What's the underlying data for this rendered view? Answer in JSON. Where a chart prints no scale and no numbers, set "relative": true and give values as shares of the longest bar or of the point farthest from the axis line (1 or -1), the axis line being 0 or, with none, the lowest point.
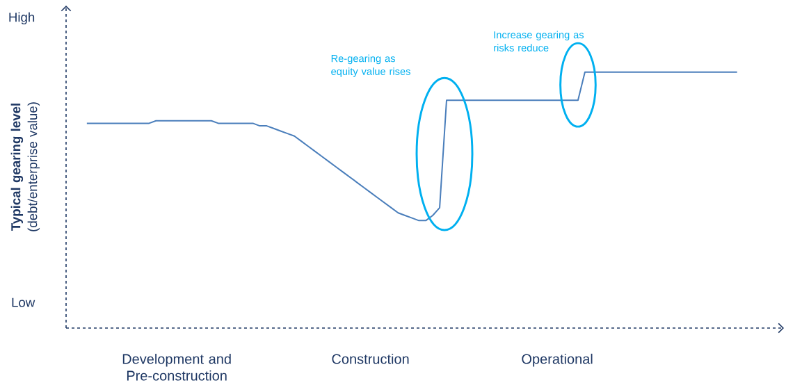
{
  "chart_data": {
    "type": "line",
    "relative": true,
    "ylabel": "**Typical gearing level** (debt/enterprise value)",
    "categories": [
      null,
      null,
      null,
      null,
      null,
      null,
      null,
      null,
      null,
      null,
      null,
      null,
      null,
      "Development and Pre-construction",
      null,
      null,
      null,
      null,
      null,
      null,
      null,
      null,
      null,
      null,
      null,
      null,
      null,
      null,
      null,
      null,
      null,
      null,
      null,
      null,
      null,
      null,
      null,
      null,
      null,
      null,
      null,
      "Construction",
      null,
      null,
      null,
      null,
      null,
      null,
      null,
      null,
      null,
      null,
      null,
      null,
      null,
      null,
      null,
      null,
      null,
      null,
      null,
      null,
      null,
      null,
      null,
      null,
      null,
      null,
      "Operational",
      null,
      null,
      null,
      null,
      null,
      null,
      null,
      null,
      null,
      null,
      null,
      null,
      null,
      null,
      null,
      null,
      null,
      null,
      null,
      null,
      null,
      null,
      null,
      null,
      null,
      null
    ],
    "series": [
      {
        "color": "#4a7ebb",
        "values": [
          0.8,
          0.8,
          0.8,
          0.8,
          0.8,
          0.8,
          0.8,
          0.8,
          0.8,
          0.8,
          0.81,
          0.81,
          0.81,
          0.81,
          0.81,
          0.81,
          0.81,
          0.81,
          0.81,
          0.8,
          0.8,
          0.8,
          0.8,
          0.8,
          0.8,
          0.79,
          0.79,
          0.78,
          0.77,
          0.76,
          0.75,
          0.73,
          0.71,
          0.69,
          0.67,
          0.65,
          0.63,
          0.61,
          0.59,
          0.57,
          0.55,
          0.53,
          0.51,
          0.49,
          0.47,
          0.45,
          0.44,
          0.43,
          0.42,
          0.42,
          0.44,
          0.47,
          0.89,
          0.89,
          0.89,
          0.89,
          0.89,
          0.89,
          0.89,
          0.89,
          0.89,
          0.89,
          0.89,
          0.89,
          0.89,
          0.89,
          0.89,
          0.89,
          0.89,
          0.89,
          0.89,
          0.89,
          1,
          1,
          1,
          1,
          1,
          1,
          1,
          1,
          1,
          1,
          1,
          1,
          1,
          1,
          1,
          1,
          1,
          1,
          1,
          1,
          1,
          1,
          1
        ]
      }
    ],
    "annotations": [
      "High",
      "Low",
      "Re-gearing as equity value rises",
      "Increase gearing as risks reduce"
    ]
  }
}
